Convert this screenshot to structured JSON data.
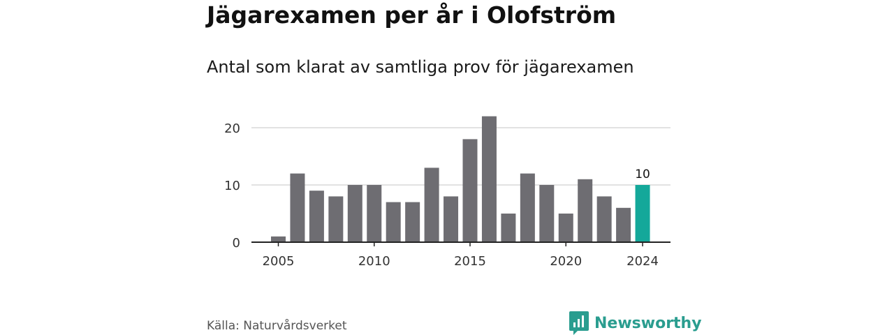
{
  "header": {
    "title": "Jägarexamen per år i Olofström",
    "subtitle": "Antal som klarat av samtliga prov för jägarexamen"
  },
  "footer": {
    "source": "Källa: Naturvårdsverket",
    "brand": "Newsworthy"
  },
  "colors": {
    "bar": "#6e6d72",
    "highlight": "#14a89a",
    "brand": "#2a9d8f"
  },
  "chart_data": {
    "type": "bar",
    "title": "Jägarexamen per år i Olofström",
    "subtitle": "Antal som klarat av samtliga prov för jägarexamen",
    "xlabel": "",
    "ylabel": "",
    "categories": [
      2005,
      2006,
      2007,
      2008,
      2009,
      2010,
      2011,
      2012,
      2013,
      2014,
      2015,
      2016,
      2017,
      2018,
      2019,
      2020,
      2021,
      2022,
      2023,
      2024
    ],
    "values": [
      1,
      12,
      9,
      8,
      10,
      10,
      7,
      7,
      13,
      8,
      18,
      22,
      5,
      12,
      10,
      5,
      11,
      8,
      6,
      10
    ],
    "ylim": [
      0,
      22
    ],
    "yticks": [
      0,
      10,
      20
    ],
    "xticks": [
      2005,
      2010,
      2015,
      2020,
      2024
    ],
    "highlight": {
      "category": 2024,
      "label": "10"
    },
    "grid": true,
    "legend": "none"
  }
}
